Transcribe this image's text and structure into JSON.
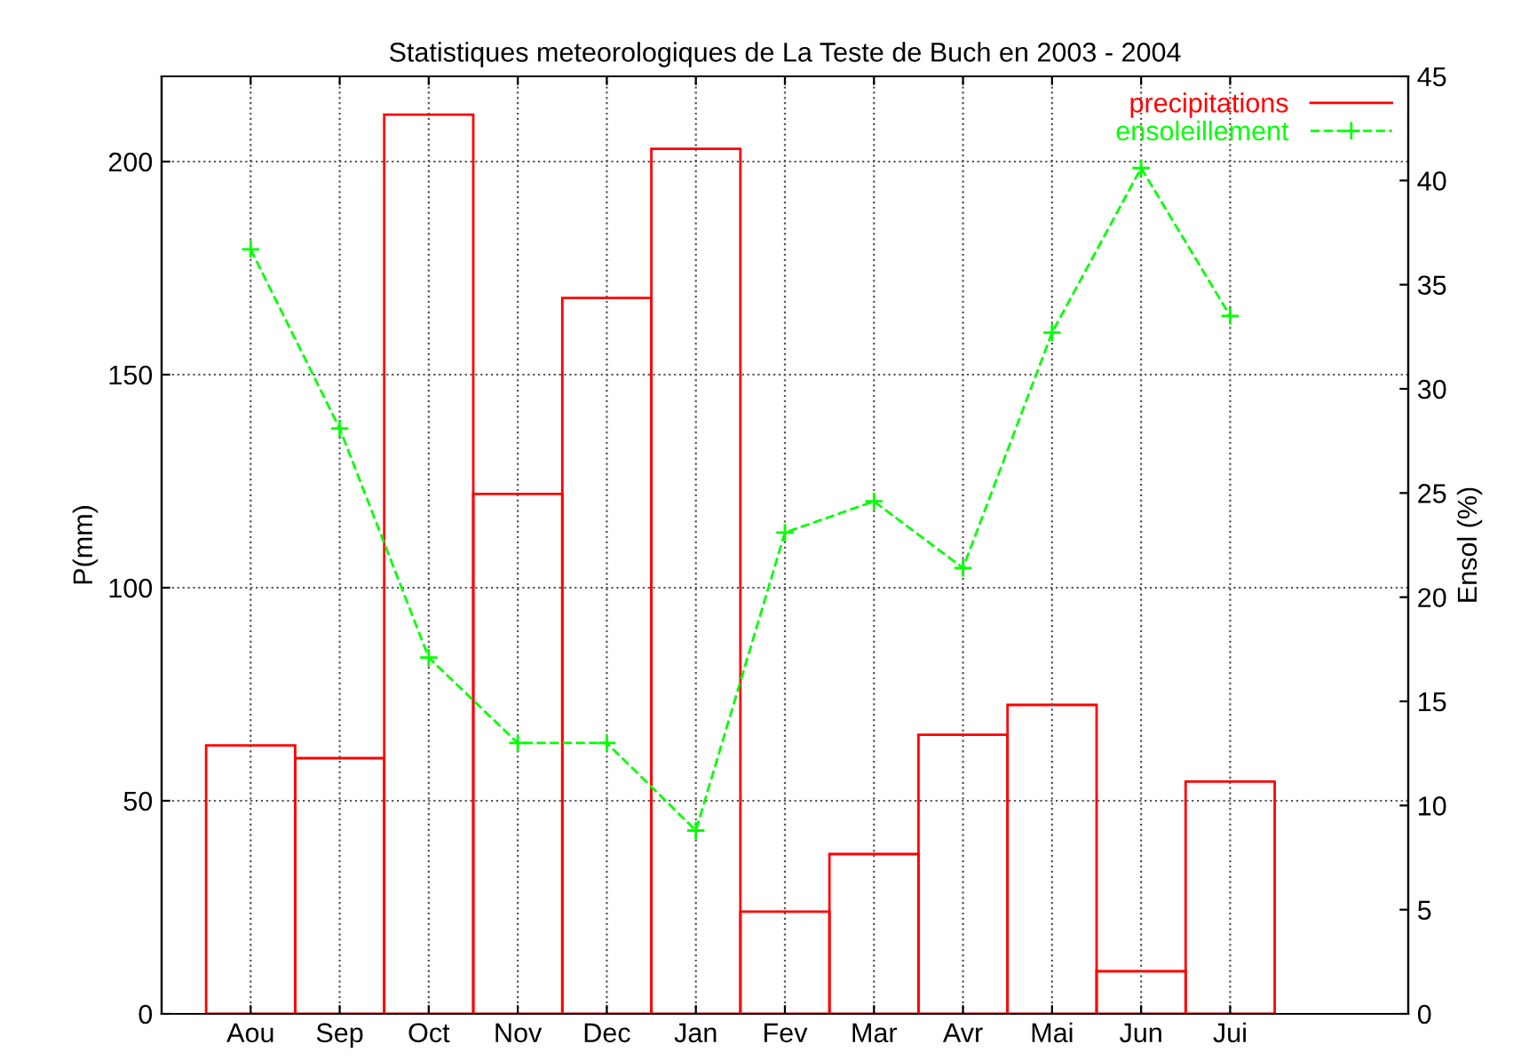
{
  "chart_data": {
    "type": "bar",
    "title": "Statistiques meteorologiques de La Teste de Buch en 2003 - 2004",
    "ylabel": "P(mm)",
    "y2label": "Ensol (%)",
    "categories": [
      "Aou",
      "Sep",
      "Oct",
      "Nov",
      "Dec",
      "Jan",
      "Fev",
      "Mar",
      "Avr",
      "Mai",
      "Jun",
      "Jui"
    ],
    "series": [
      {
        "name": "precipitations",
        "color": "#ff0000",
        "values": [
          63,
          60,
          211,
          122,
          168,
          203,
          24,
          37.5,
          65.5,
          72.5,
          10,
          54.5
        ]
      },
      {
        "name": "ensoleillement",
        "type": "line",
        "axis": "y2",
        "color": "#00ff00",
        "marker": "cross",
        "line_style": "dashed",
        "values": [
          36.7,
          28.1,
          17.1,
          13,
          13,
          8.8,
          23.1,
          24.6,
          21.4,
          32.7,
          40.6,
          33.5
        ]
      }
    ],
    "ylim": [
      0,
      220
    ],
    "yticks": [
      0,
      50,
      100,
      150,
      200
    ],
    "y2lim": [
      0,
      45
    ],
    "y2ticks": [
      0,
      5,
      10,
      15,
      20,
      25,
      30,
      35,
      40,
      45
    ],
    "grid": true,
    "legend": "top right"
  }
}
